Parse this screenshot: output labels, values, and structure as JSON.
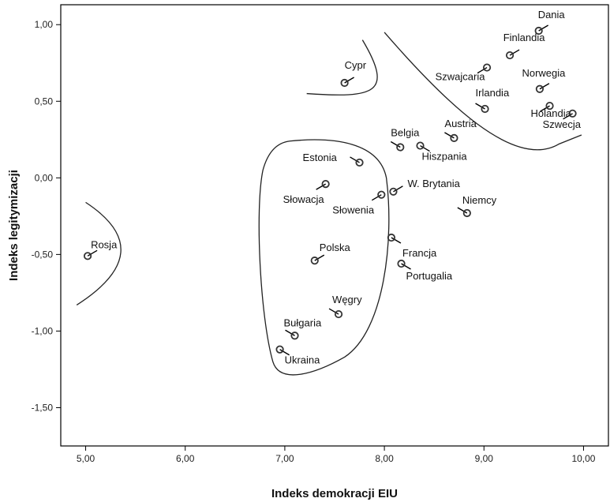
{
  "chart_data": {
    "type": "scatter",
    "title": "",
    "xlabel": "Indeks demokracji EIU",
    "ylabel": "Indeks legitymizacji",
    "xlim": [
      4.75,
      10.25
    ],
    "ylim": [
      -1.75,
      1.13
    ],
    "xticks": [
      "5,00",
      "6,00",
      "7,00",
      "8,00",
      "9,00",
      "10,00"
    ],
    "yticks": [
      "1,00",
      "0,50",
      "0,00",
      "-0,50",
      "-1,00",
      "-1,50"
    ],
    "grid": false,
    "legend": "none",
    "colors": {
      "points": "#333333",
      "curves": "#222222"
    },
    "points": [
      {
        "label": "Dania",
        "x": 9.55,
        "y": 0.96
      },
      {
        "label": "Finlandia",
        "x": 9.26,
        "y": 0.8
      },
      {
        "label": "Szwajcaria",
        "x": 9.03,
        "y": 0.72
      },
      {
        "label": "Norwegia",
        "x": 9.56,
        "y": 0.58
      },
      {
        "label": "Irlandia",
        "x": 9.01,
        "y": 0.45
      },
      {
        "label": "Holandia",
        "x": 9.66,
        "y": 0.47
      },
      {
        "label": "Szwecja",
        "x": 9.89,
        "y": 0.42
      },
      {
        "label": "Austria",
        "x": 8.7,
        "y": 0.26
      },
      {
        "label": "Belgia",
        "x": 8.16,
        "y": 0.2
      },
      {
        "label": "Hiszpania",
        "x": 8.36,
        "y": 0.21
      },
      {
        "label": "Cypr",
        "x": 7.6,
        "y": 0.62
      },
      {
        "label": "Estonia",
        "x": 7.75,
        "y": 0.1
      },
      {
        "label": "Słowacja",
        "x": 7.41,
        "y": -0.04
      },
      {
        "label": "Słowenia",
        "x": 7.97,
        "y": -0.11
      },
      {
        "label": "W. Brytania",
        "x": 8.09,
        "y": -0.09
      },
      {
        "label": "Niemcy",
        "x": 8.83,
        "y": -0.23
      },
      {
        "label": "Francja",
        "x": 8.07,
        "y": -0.39
      },
      {
        "label": "Portugalia",
        "x": 8.17,
        "y": -0.56
      },
      {
        "label": "Polska",
        "x": 7.3,
        "y": -0.54
      },
      {
        "label": "Rosja",
        "x": 5.02,
        "y": -0.51
      },
      {
        "label": "Węgry",
        "x": 7.54,
        "y": -0.89
      },
      {
        "label": "Bułgaria",
        "x": 7.1,
        "y": -1.03
      },
      {
        "label": "Ukraina",
        "x": 6.95,
        "y": -1.12
      }
    ]
  }
}
